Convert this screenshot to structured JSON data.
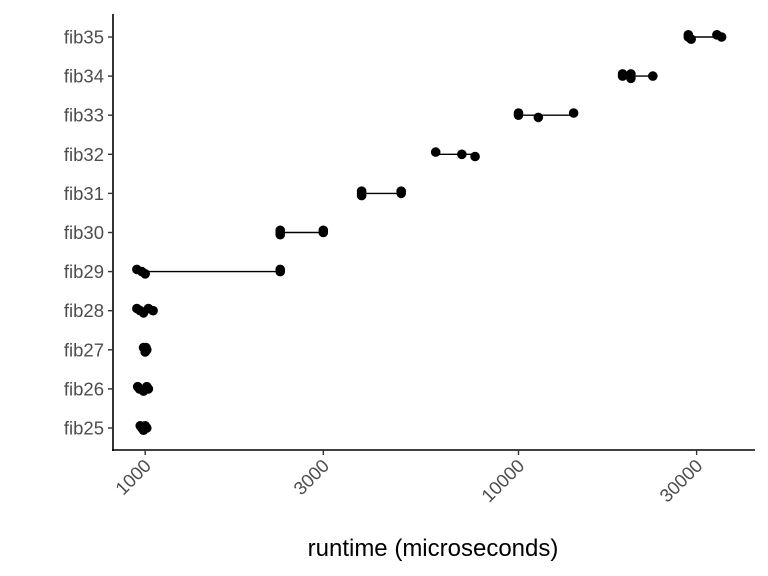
{
  "chart_data": {
    "type": "scatter",
    "title": "",
    "xlabel": "runtime (microseconds)",
    "ylabel": "",
    "x_scale": "log10",
    "xlim": [
      820,
      43000
    ],
    "x_ticks": [
      1000,
      3000,
      10000,
      30000
    ],
    "x_tick_labels": [
      "1000",
      "3000",
      "10000",
      "30000"
    ],
    "categories": [
      "fib25",
      "fib26",
      "fib27",
      "fib28",
      "fib29",
      "fib30",
      "fib31",
      "fib32",
      "fib33",
      "fib34",
      "fib35"
    ],
    "grid": false,
    "legend": "none",
    "series": [
      {
        "values": [
          {
            "category": "fib25",
            "min": 970,
            "max": 1010,
            "points": [
              970,
              980,
              990,
              1000,
              1010
            ]
          },
          {
            "category": "fib26",
            "min": 955,
            "max": 1020,
            "points": [
              955,
              965,
              990,
              1010,
              1020
            ]
          },
          {
            "category": "fib27",
            "min": 990,
            "max": 1010,
            "points": [
              990,
              1000,
              1000,
              1005,
              1010
            ]
          },
          {
            "category": "fib28",
            "min": 950,
            "max": 1050,
            "points": [
              950,
              970,
              990,
              1020,
              1050
            ]
          },
          {
            "category": "fib29",
            "min": 950,
            "max": 2300,
            "points": [
              950,
              980,
              1000,
              2300,
              2300
            ]
          },
          {
            "category": "fib30",
            "min": 2300,
            "max": 3000,
            "points": [
              2300,
              2300,
              2300,
              3000,
              3000
            ]
          },
          {
            "category": "fib31",
            "min": 3800,
            "max": 4850,
            "points": [
              3800,
              3800,
              3800,
              4850,
              4850
            ]
          },
          {
            "category": "fib32",
            "min": 6000,
            "max": 7650,
            "points": [
              6000,
              7050,
              7650
            ]
          },
          {
            "category": "fib33",
            "min": 10000,
            "max": 14050,
            "points": [
              10000,
              10000,
              11300,
              14050
            ]
          },
          {
            "category": "fib34",
            "min": 19000,
            "max": 22900,
            "points": [
              19000,
              19000,
              20000,
              20000,
              22900
            ]
          },
          {
            "category": "fib35",
            "min": 28500,
            "max": 35000,
            "points": [
              28500,
              28500,
              29000,
              34000,
              35000
            ]
          }
        ]
      }
    ]
  }
}
